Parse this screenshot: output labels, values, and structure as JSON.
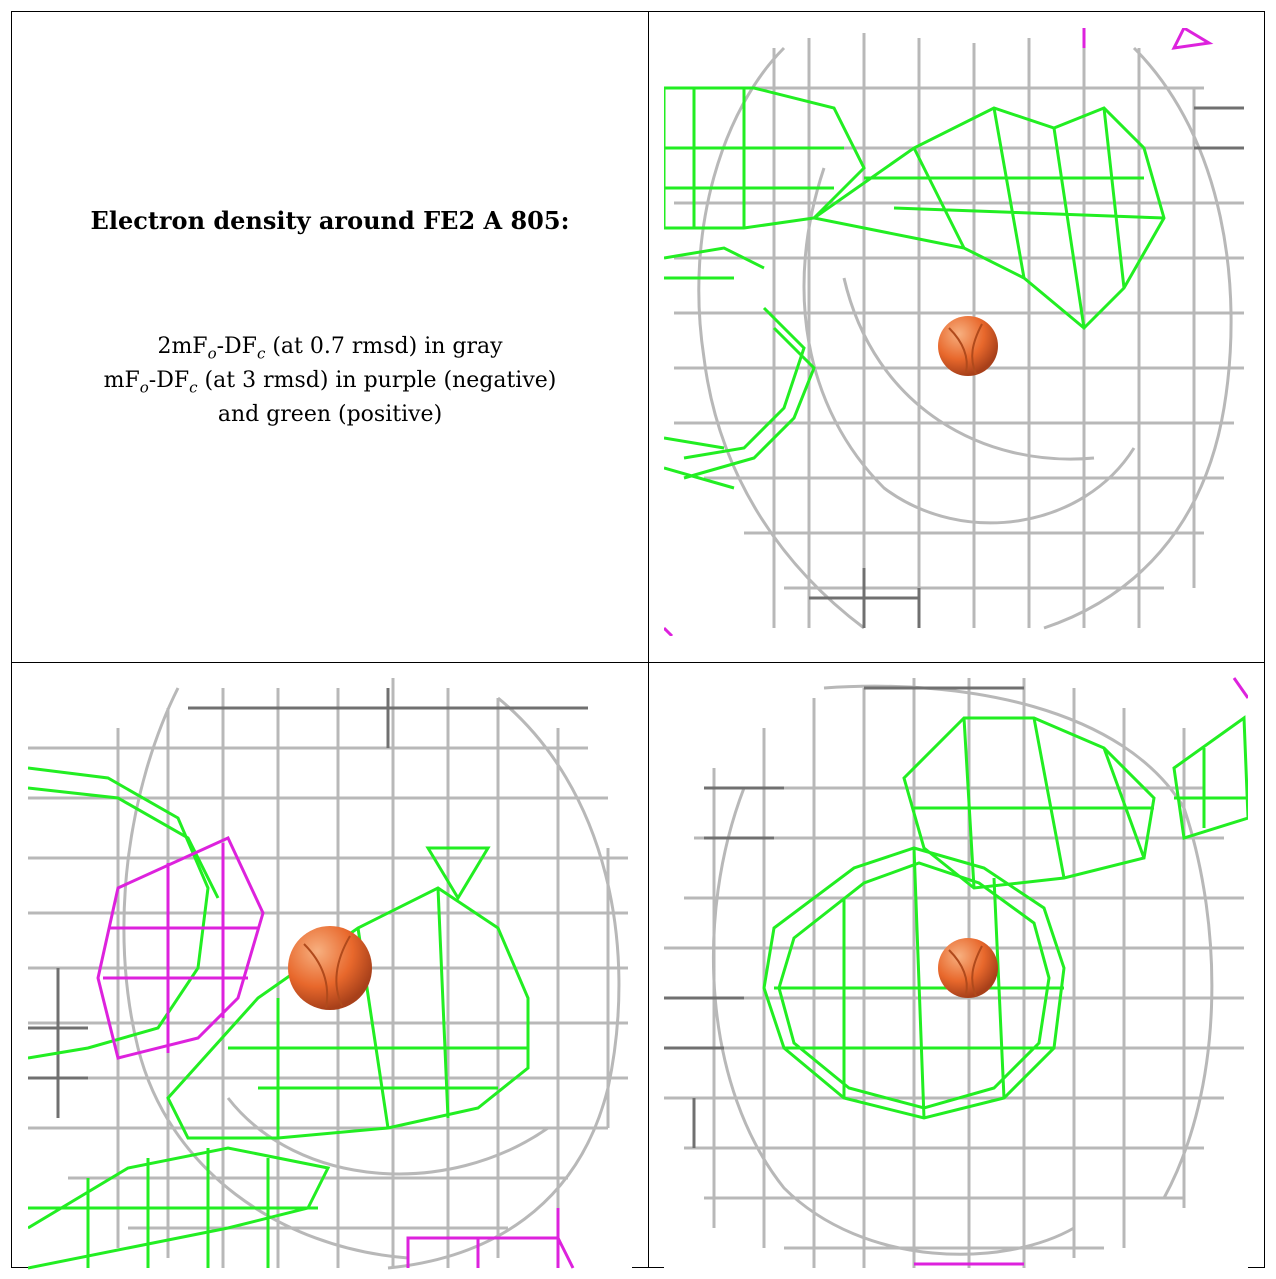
{
  "caption": {
    "title": "Electron density around FE2 A 805:",
    "line1_a": "2mF",
    "line1_sub1": "o",
    "line1_b": "-DF",
    "line1_sub2": "c",
    "line1_c": " (at 0.7 rmsd) in gray",
    "line2_a": "mF",
    "line2_sub1": "o",
    "line2_b": "-DF",
    "line2_sub2": "c",
    "line2_c": " (at 3 rmsd) in purple (negative)",
    "line3": "and green (positive)"
  },
  "colors": {
    "gray_mesh": "#b8b8b8",
    "dark_mesh": "#707070",
    "positive_mesh": "#22ee22",
    "negative_mesh": "#dd22dd",
    "atom": "#e8682c"
  }
}
